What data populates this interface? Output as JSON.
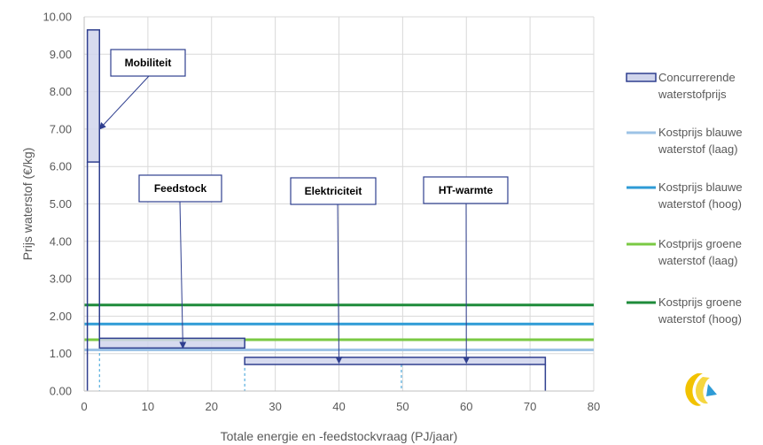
{
  "chart_data": {
    "type": "step-area",
    "xlabel": "Totale energie en -feedstockvraag (PJ/jaar)",
    "ylabel": "Prijs waterstof (€/kg)",
    "xlim": [
      0,
      80
    ],
    "ylim": [
      0,
      10
    ],
    "x_ticks": [
      "0",
      "10",
      "20",
      "30",
      "40",
      "50",
      "60",
      "70",
      "80"
    ],
    "y_ticks": [
      "0.00",
      "1.00",
      "2.00",
      "3.00",
      "4.00",
      "5.00",
      "6.00",
      "7.00",
      "8.00",
      "9.00",
      "10.00"
    ],
    "grid": "both",
    "legend_position": "right",
    "series": [
      {
        "name": "Concurrerende waterstofprijs",
        "kind": "range-bars",
        "color": "#2F3F8F",
        "fill": "#D0D5EC",
        "segments": [
          {
            "x0": 0.5,
            "x1": 2.4,
            "y_low": 6.12,
            "y_high": 9.65
          },
          {
            "x0": 2.4,
            "x1": 25.2,
            "y_low": 1.15,
            "y_high": 1.41
          },
          {
            "x0": 25.2,
            "x1": 72.4,
            "y_low": 0.71,
            "y_high": 0.9
          }
        ]
      },
      {
        "name": "Kostprijs blauwe waterstof (laag)",
        "kind": "hline",
        "value": 1.1,
        "color": "#9DC3E6"
      },
      {
        "name": "Kostprijs blauwe waterstof (hoog)",
        "kind": "hline",
        "value": 1.79,
        "color": "#2E9BD6"
      },
      {
        "name": "Kostprijs groene waterstof (laag)",
        "kind": "hline",
        "value": 1.37,
        "color": "#7AC943"
      },
      {
        "name": "Kostprijs groene waterstof (hoog)",
        "kind": "hline",
        "value": 2.3,
        "color": "#1E8B3A"
      }
    ],
    "dashed_verticals": [
      2.4,
      25.2,
      49.8
    ],
    "annotations": [
      {
        "text": "Mobiliteit",
        "target": [
          2.4,
          7.0
        ]
      },
      {
        "text": "Feedstock",
        "target": [
          15.5,
          1.15
        ]
      },
      {
        "text": "Elektriciteit",
        "target": [
          40,
          0.75
        ]
      },
      {
        "text": "HT-warmte",
        "target": [
          60,
          0.75
        ]
      }
    ],
    "legend": [
      {
        "line1": "Concurrerende",
        "line2": "waterstofprijs"
      },
      {
        "line1": "Kostprijs blauwe",
        "line2": "waterstof (laag)"
      },
      {
        "line1": "Kostprijs blauwe",
        "line2": "waterstof (hoog)"
      },
      {
        "line1": "Kostprijs groene",
        "line2": "waterstof (laag)"
      },
      {
        "line1": "Kostprijs groene",
        "line2": "waterstof (hoog)"
      }
    ]
  }
}
